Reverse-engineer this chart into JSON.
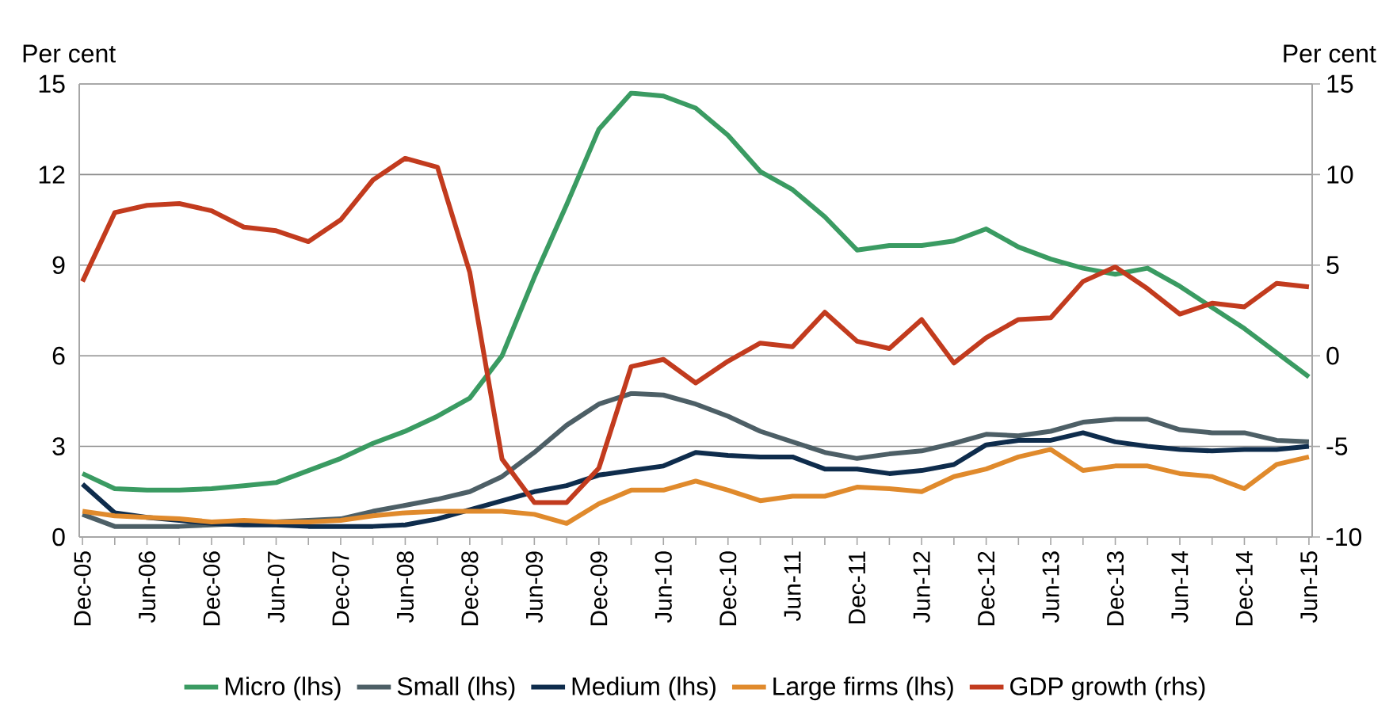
{
  "chart_data": {
    "type": "line",
    "ylabel": "Per cent",
    "y2label": "Per cent",
    "categories": [
      "Dec-05",
      null,
      "Jun-06",
      null,
      "Dec-06",
      null,
      "Jun-07",
      null,
      "Dec-07",
      null,
      "Jun-08",
      null,
      "Dec-08",
      null,
      "Jun-09",
      null,
      "Dec-09",
      null,
      "Jun-10",
      null,
      "Dec-10",
      null,
      "Jun-11",
      null,
      "Dec-11",
      null,
      "Jun-12",
      null,
      "Dec-12",
      null,
      "Jun-13",
      null,
      "Dec-13",
      null,
      "Jun-14",
      null,
      "Dec-14",
      null,
      "Jun-15"
    ],
    "ylim": [
      0,
      15
    ],
    "yticks": [
      0,
      3,
      6,
      9,
      12,
      15
    ],
    "y2lim": [
      -10,
      15
    ],
    "y2ticks": [
      -10,
      -5,
      0,
      5,
      10,
      15
    ],
    "grid": "y",
    "legend": "bottom",
    "marker": "none",
    "series": [
      {
        "name": "Micro (lhs)",
        "color": "#3a9b62",
        "values": [
          2.1,
          1.6,
          1.55,
          1.55,
          1.6,
          1.7,
          1.8,
          2.2,
          2.6,
          3.1,
          3.5,
          4.0,
          4.6,
          6.0,
          8.6,
          11.0,
          13.5,
          14.7,
          14.6,
          14.2,
          13.3,
          12.1,
          11.5,
          10.6,
          9.5,
          9.65,
          9.65,
          9.8,
          10.2,
          9.6,
          9.2,
          8.9,
          8.7,
          8.9,
          8.3,
          7.6,
          6.9,
          6.1,
          5.3
        ]
      },
      {
        "name": "Small (lhs)",
        "color": "#4d5f66",
        "values": [
          0.75,
          0.35,
          0.35,
          0.35,
          0.4,
          0.45,
          0.5,
          0.55,
          0.6,
          0.85,
          1.05,
          1.25,
          1.5,
          2.0,
          2.8,
          3.7,
          4.4,
          4.75,
          4.7,
          4.4,
          4.0,
          3.5,
          3.15,
          2.8,
          2.6,
          2.75,
          2.85,
          3.1,
          3.4,
          3.35,
          3.5,
          3.8,
          3.9,
          3.9,
          3.55,
          3.45,
          3.45,
          3.2,
          3.15
        ]
      },
      {
        "name": "Medium (lhs)",
        "color": "#0e2c4c",
        "values": [
          1.75,
          0.8,
          0.65,
          0.55,
          0.45,
          0.4,
          0.4,
          0.35,
          0.35,
          0.35,
          0.4,
          0.6,
          0.9,
          1.2,
          1.5,
          1.7,
          2.05,
          2.2,
          2.35,
          2.8,
          2.7,
          2.65,
          2.65,
          2.25,
          2.25,
          2.1,
          2.2,
          2.4,
          3.05,
          3.2,
          3.2,
          3.45,
          3.15,
          3.0,
          2.9,
          2.85,
          2.9,
          2.9,
          3.0
        ]
      },
      {
        "name": "Large firms (lhs)",
        "color": "#e08a2c",
        "values": [
          0.85,
          0.7,
          0.65,
          0.6,
          0.5,
          0.55,
          0.5,
          0.5,
          0.55,
          0.7,
          0.8,
          0.85,
          0.85,
          0.85,
          0.75,
          0.45,
          1.1,
          1.55,
          1.55,
          1.85,
          1.55,
          1.2,
          1.35,
          1.35,
          1.65,
          1.6,
          1.5,
          2.0,
          2.25,
          2.65,
          2.9,
          2.2,
          2.35,
          2.35,
          2.1,
          2.0,
          1.6,
          2.4,
          2.65
        ]
      },
      {
        "name": "GDP growth (rhs)",
        "color": "#c23b1e",
        "axis": "y2",
        "values": [
          4.1,
          7.9,
          8.3,
          8.4,
          8.0,
          7.1,
          6.9,
          6.3,
          7.5,
          9.7,
          10.9,
          10.4,
          4.6,
          -5.7,
          -8.1,
          -8.1,
          -6.2,
          -0.6,
          -0.2,
          -1.5,
          -0.3,
          0.7,
          0.5,
          2.4,
          0.8,
          0.4,
          2.0,
          -0.4,
          1.0,
          2.0,
          2.1,
          4.1,
          4.9,
          3.7,
          2.3,
          2.9,
          2.7,
          4.0,
          3.8
        ]
      }
    ]
  }
}
